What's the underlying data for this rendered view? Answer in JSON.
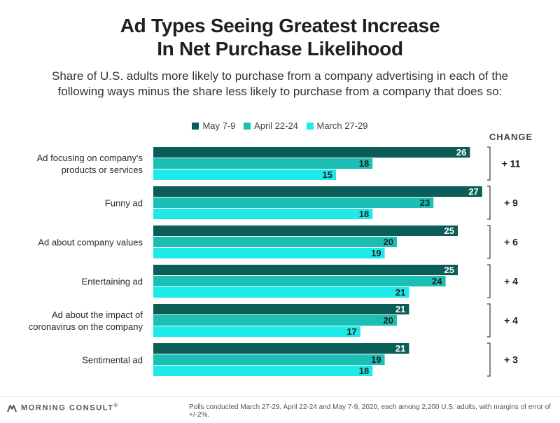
{
  "chart_data": {
    "type": "bar",
    "orientation": "horizontal",
    "title_line1": "Ad Types Seeing Greatest Increase",
    "title_line2": "In Net Purchase Likelihood",
    "subtitle_line1": "Share of U.S. adults more likely to purchase from a company advertising in each of the",
    "subtitle_line2": "following ways minus the share less likely to purchase from a company that does so:",
    "categories": [
      [
        "Ad focusing on company's",
        "products or services"
      ],
      [
        "Funny ad"
      ],
      [
        "Ad about company values"
      ],
      [
        "Entertaining ad"
      ],
      [
        "Ad about the impact of",
        "coronavirus on the company"
      ],
      [
        "Sentimental ad"
      ]
    ],
    "series": [
      {
        "name": "May 7-9",
        "color": "#0b5e57",
        "values": [
          26,
          27,
          25,
          25,
          21,
          21
        ]
      },
      {
        "name": "April 22-24",
        "color": "#1cbfb3",
        "values": [
          18,
          23,
          20,
          24,
          20,
          19
        ]
      },
      {
        "name": "March 27-29",
        "color": "#1de9e9",
        "values": [
          15,
          18,
          19,
          21,
          17,
          18
        ]
      }
    ],
    "change_header": "CHANGE",
    "change_labels": [
      "+ 11",
      "+ 9",
      "+ 6",
      "+ 4",
      "+ 4",
      "+ 3"
    ],
    "xlim": [
      0,
      28
    ]
  },
  "footer": {
    "logo_text": "MORNING CONSULT",
    "trademark": "®",
    "note": "Polls conducted March 27-29, April 22-24 and May 7-9, 2020, each among 2,200 U.S. adults, with margins of error of +/-2%."
  },
  "colors": {
    "logo": "#555555",
    "bracket": "#444444"
  }
}
